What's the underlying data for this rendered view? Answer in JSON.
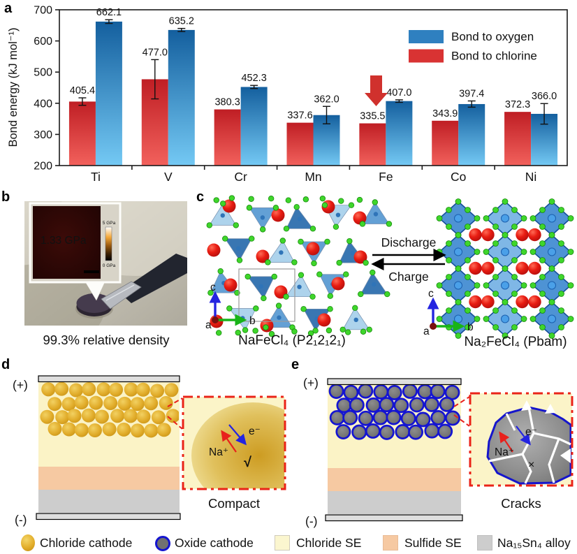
{
  "figure": {
    "panel_labels": {
      "a": "a",
      "b": "b",
      "c": "c",
      "d": "d",
      "e": "e"
    }
  },
  "chart_data": {
    "type": "bar",
    "categories": [
      "Ti",
      "V",
      "Cr",
      "Mn",
      "Fe",
      "Co",
      "Ni"
    ],
    "series": [
      {
        "name": "Bond to chlorine",
        "color_top": "#bf1e24",
        "color_bottom": "#f2615c",
        "values": [
          405.4,
          477.0,
          380.3,
          337.6,
          335.5,
          343.9,
          372.3
        ],
        "errors": [
          12,
          63,
          0,
          0,
          0,
          0,
          0
        ]
      },
      {
        "name": "Bond to oxygen",
        "color_top": "#145f9e",
        "color_bottom": "#74c9f4",
        "values": [
          662.1,
          635.2,
          452.3,
          362.0,
          407.0,
          397.4,
          366.0
        ],
        "errors": [
          6,
          5,
          5,
          28,
          4,
          10,
          33
        ]
      }
    ],
    "bar_order_note": "chlorine bar drawn left of oxygen bar in each group",
    "ylabel": "Bond energy (kJ mol⁻¹)",
    "xlabel": "",
    "ylim": [
      200,
      700
    ],
    "yticks": [
      200,
      300,
      400,
      500,
      600,
      700
    ],
    "grid": false,
    "legend_position": "top-right-inside",
    "legend": [
      {
        "label": "Bond to oxygen",
        "color": "#2f80c0"
      },
      {
        "label": "Bond to chlorine",
        "color": "#d93333"
      }
    ],
    "annotation": {
      "type": "down-arrow",
      "color": "#d0312d",
      "target": "Fe chlorine bar"
    }
  },
  "panel_b": {
    "modulus_value": "1.33 GPa",
    "colorbar_top": "5 GPa",
    "colorbar_bottom": "0 GPa",
    "caption": "99.3% relative density"
  },
  "panel_c": {
    "discharge": "Discharge",
    "charge": "Charge",
    "left_formula": "NaFeCl₄ (P2₁2₁2₁)",
    "right_formula": "Na₂FeCl₄ (Pbam)",
    "axis_a": "a",
    "axis_b": "b",
    "axis_c": "c"
  },
  "panel_d": {
    "positive": "(+)",
    "negative": "(-)",
    "ion": "Na⁺",
    "electron": "e⁻",
    "check": "√",
    "caption": "Compact"
  },
  "panel_e": {
    "positive": "(+)",
    "negative": "(-)",
    "ion": "Na⁺",
    "electron": "e⁻",
    "cross": "×",
    "caption": "Cracks"
  },
  "legend_bottom": {
    "items": [
      {
        "label": "Chloride cathode",
        "swatch": "gold-sphere",
        "color": "#e2ad2a"
      },
      {
        "label": "Oxide cathode",
        "swatch": "gray-sphere-blue-ring",
        "color": "#717171"
      },
      {
        "label": "Chloride SE",
        "swatch": "pale-yellow-square",
        "color": "#fbf6cf"
      },
      {
        "label": "Sulfide SE",
        "swatch": "peach-square",
        "color": "#f6c9a2"
      },
      {
        "label": "Na₁₅Sn₄ alloy",
        "swatch": "gray-square",
        "color": "#cdcdcd"
      }
    ]
  }
}
